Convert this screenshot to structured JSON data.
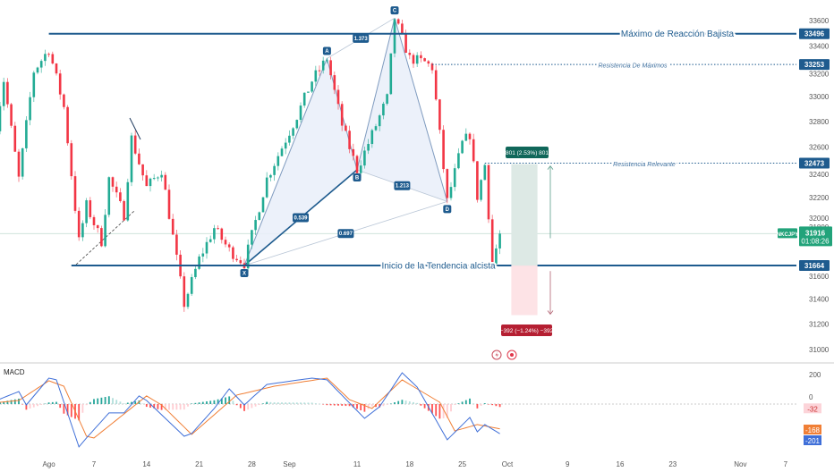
{
  "symbol": "NKCJPY",
  "current_price": "31916",
  "countdown": "01:08:26",
  "colors": {
    "up": "#22ab94",
    "down": "#f23645",
    "level": "#1e5b8e",
    "pattern_fill": "#e9eef9",
    "pattern_line": "#7f9bbf",
    "macd": "#3f6fd8",
    "signal": "#f07f36",
    "price_badge": "#22a37a"
  },
  "chart_data": [
    {
      "type": "candlestick",
      "ylim": [
        31000,
        33600
      ],
      "y_ticks": [
        "33600",
        "33400",
        "33200",
        "33000",
        "32800",
        "32600",
        "32400",
        "32200",
        "32000",
        "31800",
        "31600",
        "31400",
        "31200",
        "31000"
      ],
      "x_ticks": [
        {
          "label": "Ago",
          "date": "08-01"
        },
        {
          "label": "7",
          "date": "08-07"
        },
        {
          "label": "14",
          "date": "08-14"
        },
        {
          "label": "21",
          "date": "08-21"
        },
        {
          "label": "28",
          "date": "08-28"
        },
        {
          "label": "Sep",
          "date": "09-02"
        },
        {
          "label": "11",
          "date": "09-11"
        },
        {
          "label": "18",
          "date": "09-18"
        },
        {
          "label": "25",
          "date": "09-25"
        },
        {
          "label": "Oct",
          "date": "10-01"
        },
        {
          "label": "9",
          "date": "10-09"
        },
        {
          "label": "16",
          "date": "10-16"
        },
        {
          "label": "23",
          "date": "10-23"
        },
        {
          "label": "Nov",
          "date": "11-01"
        },
        {
          "label": "7",
          "date": "11-07"
        }
      ],
      "price_path": [
        [
          "07-25",
          32770
        ],
        [
          "07-26",
          33130
        ],
        [
          "07-28",
          32350
        ],
        [
          "07-30",
          33200
        ],
        [
          "08-01",
          33375
        ],
        [
          "08-03",
          32915
        ],
        [
          "08-05",
          31855
        ],
        [
          "08-06",
          32140
        ],
        [
          "08-08",
          31855
        ],
        [
          "08-09",
          32350
        ],
        [
          "08-11",
          32065
        ],
        [
          "08-12",
          32670
        ],
        [
          "08-14",
          32280
        ],
        [
          "08-16",
          32420
        ],
        [
          "08-18",
          31715
        ],
        [
          "08-19",
          31360
        ],
        [
          "08-21",
          31715
        ],
        [
          "08-23",
          31960
        ],
        [
          "08-25",
          31785
        ],
        [
          "08-27",
          31680
        ],
        [
          "08-30",
          32350
        ],
        [
          "09-03",
          32845
        ],
        [
          "09-05",
          33125
        ],
        [
          "09-07",
          33300
        ],
        [
          "09-09",
          32775
        ],
        [
          "09-11",
          32420
        ],
        [
          "09-13",
          32700
        ],
        [
          "09-15",
          32985
        ],
        [
          "09-16",
          33620
        ],
        [
          "09-18",
          33300
        ],
        [
          "09-20",
          33270
        ],
        [
          "09-21",
          33230
        ],
        [
          "09-23",
          32170
        ],
        [
          "09-25",
          32630
        ],
        [
          "09-26",
          32700
        ],
        [
          "09-27",
          32210
        ],
        [
          "09-28",
          32460
        ],
        [
          "09-29",
          31680
        ],
        [
          "09-30",
          31916
        ]
      ],
      "levels": [
        {
          "price": 33496,
          "label": "Máximo de Reacción Bajista",
          "badge": "33496",
          "style": "solid",
          "from": "08-01"
        },
        {
          "price": 33253,
          "label": "Resistencia De Máximos",
          "badge": "33253",
          "style": "dotted",
          "from": "09-21"
        },
        {
          "price": 32473,
          "label": "Resistencia Relevante",
          "badge": "32473",
          "style": "dotted",
          "from": "09-28"
        },
        {
          "price": 31664,
          "label": "Inicio de la Tendencia alcista",
          "badge": "31664",
          "style": "solid",
          "from": "08-04"
        }
      ],
      "harmonic_pattern": {
        "points": [
          {
            "name": "X",
            "date": "08-27",
            "price": 31664
          },
          {
            "name": "A",
            "date": "09-07",
            "price": 33300
          },
          {
            "name": "B",
            "date": "09-11",
            "price": 32420
          },
          {
            "name": "C",
            "date": "09-16",
            "price": 33620
          },
          {
            "name": "D",
            "date": "09-23",
            "price": 32170
          }
        ],
        "ratios": [
          {
            "from": "X",
            "to": "B",
            "value": "0.539"
          },
          {
            "from": "A",
            "to": "C",
            "value": "1.373"
          },
          {
            "from": "B",
            "to": "D",
            "value": "1.213"
          },
          {
            "from": "X",
            "to": "D",
            "value": "0.697"
          }
        ]
      },
      "position_tool": {
        "entry": 31664,
        "target": 32465,
        "stop": 31272,
        "from": "10-02",
        "to": "10-05",
        "target_label": "801 (2.53%) 801",
        "stop_label": "−392 (−1.24%) −392"
      }
    },
    {
      "type": "line",
      "title": "MACD",
      "ylim": [
        -300,
        250
      ],
      "y_ticks": [
        "200",
        "0"
      ],
      "macd_path": [
        [
          "07-25",
          24
        ],
        [
          "07-28",
          85
        ],
        [
          "07-29",
          -6
        ],
        [
          "08-01",
          176
        ],
        [
          "08-02",
          164
        ],
        [
          "08-05",
          -290
        ],
        [
          "08-06",
          -230
        ],
        [
          "08-09",
          -60
        ],
        [
          "08-11",
          -60
        ],
        [
          "08-13",
          55
        ],
        [
          "08-14",
          24
        ],
        [
          "08-19",
          -218
        ],
        [
          "08-20",
          -200
        ],
        [
          "08-23",
          -30
        ],
        [
          "08-25",
          103
        ],
        [
          "08-27",
          -6
        ],
        [
          "08-30",
          133
        ],
        [
          "09-05",
          176
        ],
        [
          "09-07",
          164
        ],
        [
          "09-12",
          -97
        ],
        [
          "09-14",
          -18
        ],
        [
          "09-17",
          212
        ],
        [
          "09-19",
          115
        ],
        [
          "09-23",
          -242
        ],
        [
          "09-26",
          -91
        ],
        [
          "09-27",
          -188
        ],
        [
          "09-28",
          -139
        ],
        [
          "09-30",
          -201
        ]
      ],
      "signal_path": [
        [
          "07-25",
          10
        ],
        [
          "07-28",
          24
        ],
        [
          "08-01",
          158
        ],
        [
          "08-03",
          121
        ],
        [
          "08-06",
          -218
        ],
        [
          "08-07",
          -230
        ],
        [
          "08-11",
          -67
        ],
        [
          "08-14",
          55
        ],
        [
          "08-16",
          -6
        ],
        [
          "08-20",
          -206
        ],
        [
          "08-26",
          61
        ],
        [
          "08-31",
          121
        ],
        [
          "09-07",
          176
        ],
        [
          "09-10",
          30
        ],
        [
          "09-13",
          -30
        ],
        [
          "09-17",
          164
        ],
        [
          "09-22",
          12
        ],
        [
          "09-24",
          -182
        ],
        [
          "09-27",
          -139
        ],
        [
          "09-30",
          -168
        ]
      ],
      "last_values": {
        "histogram": "-32",
        "signal": "-168",
        "macd": "-201"
      }
    }
  ]
}
